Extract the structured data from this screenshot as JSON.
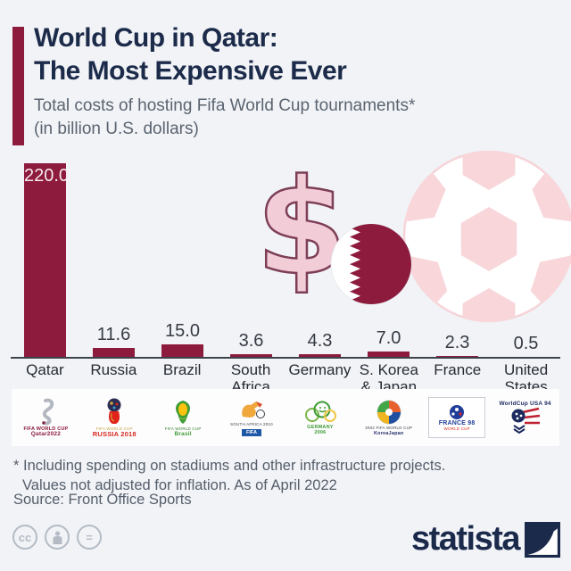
{
  "header": {
    "title_line1": "World Cup in Qatar:",
    "title_line2": "The Most Expensive Ever",
    "subtitle_line1": "Total costs of hosting Fifa World Cup tournaments*",
    "subtitle_line2": "(in billion U.S. dollars)"
  },
  "chart_data": {
    "type": "bar",
    "title": "Total costs of hosting Fifa World Cup tournaments (in billion U.S. dollars)",
    "categories": [
      "Qatar",
      "Russia",
      "Brazil",
      "South Africa",
      "Germany",
      "S. Korea & Japan",
      "France",
      "United States"
    ],
    "values": [
      220.0,
      11.6,
      15.0,
      3.6,
      4.3,
      7.0,
      2.3,
      0.5
    ],
    "value_labels": [
      "220.0",
      "11.6",
      "15.0",
      "3.6",
      "4.3",
      "7.0",
      "2.3",
      "0.5"
    ],
    "bar_color": "#8d1b3d",
    "xlabel": "",
    "ylabel": "billion U.S. dollars",
    "ylim": [
      0,
      222
    ],
    "grid": false,
    "legend": false
  },
  "decorations": {
    "dollar_sign": "$",
    "dollar_fill": "#f2ccd7",
    "dollar_outline": "#7d3e56",
    "ball_patch_color": "#f8d6da",
    "flag_maroon": "#8d1b3d"
  },
  "logos": [
    {
      "id": "qatar-2022",
      "line1": "FIFA WORLD CUP",
      "line2": "Qatar2022"
    },
    {
      "id": "russia-2018",
      "line1": "FIFA WORLD CUP",
      "line2": "RUSSIA 2018"
    },
    {
      "id": "brazil-2014",
      "line1": "FIFA WORLD CUP",
      "line2": "Brasil"
    },
    {
      "id": "south-africa-2010",
      "line1": "SOUTH AFRICA 2010",
      "line2": "FIFA"
    },
    {
      "id": "germany-2006",
      "line1": "GERMANY",
      "line2": "2006"
    },
    {
      "id": "korea-japan-2002",
      "line1": "2002 FIFA WORLD CUP",
      "line2": "KoreaJapan"
    },
    {
      "id": "france-98",
      "line1": "FRANCE 98",
      "line2": "WORLD CUP"
    },
    {
      "id": "usa-94",
      "line1": "WorldCup USA 94",
      "line2": ""
    }
  ],
  "footnote_line1": "* Including spending on stadiums and other infrastructure projects.",
  "footnote_line2": "Values not adjusted for inflation. As of April 2022",
  "source": "Source: Front Office Sports",
  "license": {
    "cc_label": "cc",
    "nd_label": "="
  },
  "branding": {
    "wordmark": "statista"
  }
}
